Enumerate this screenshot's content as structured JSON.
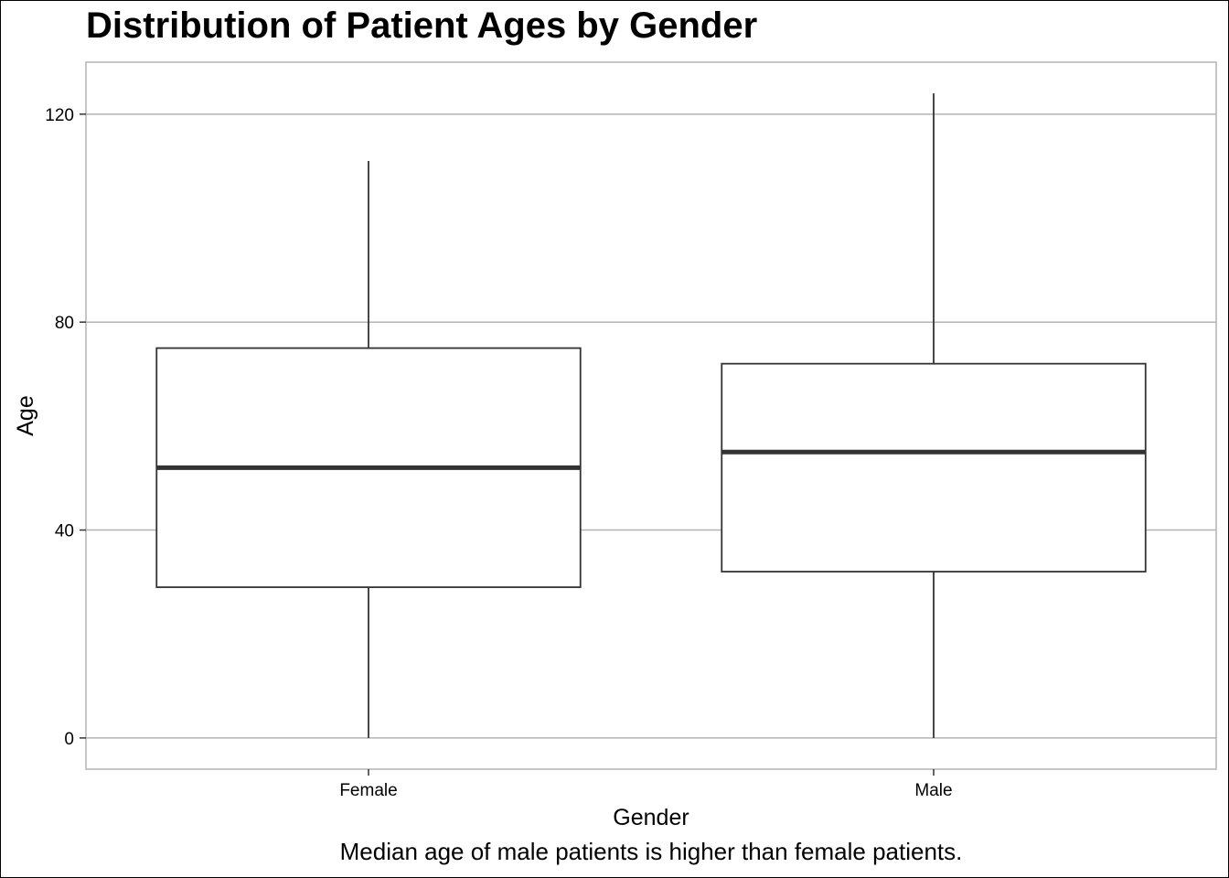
{
  "chart_data": {
    "type": "box",
    "title": "Distribution of Patient Ages by Gender",
    "caption": "Median age of male patients is higher than female patients.",
    "xlabel": "Gender",
    "ylabel": "Age",
    "categories": [
      "Female",
      "Male"
    ],
    "boxes": [
      {
        "category": "Female",
        "min": 0,
        "q1": 29,
        "median": 52,
        "q3": 75,
        "max": 111
      },
      {
        "category": "Male",
        "min": 0,
        "q1": 32,
        "median": 55,
        "q3": 72,
        "max": 124
      }
    ],
    "ylim": [
      -6,
      130
    ],
    "yticks": [
      0,
      40,
      80,
      120
    ],
    "grid": true,
    "colors": {
      "box_fill": "#ffffff",
      "box_line": "#333333",
      "grid": "#b3b3b3",
      "panel_border": "#b3b3b3"
    }
  }
}
